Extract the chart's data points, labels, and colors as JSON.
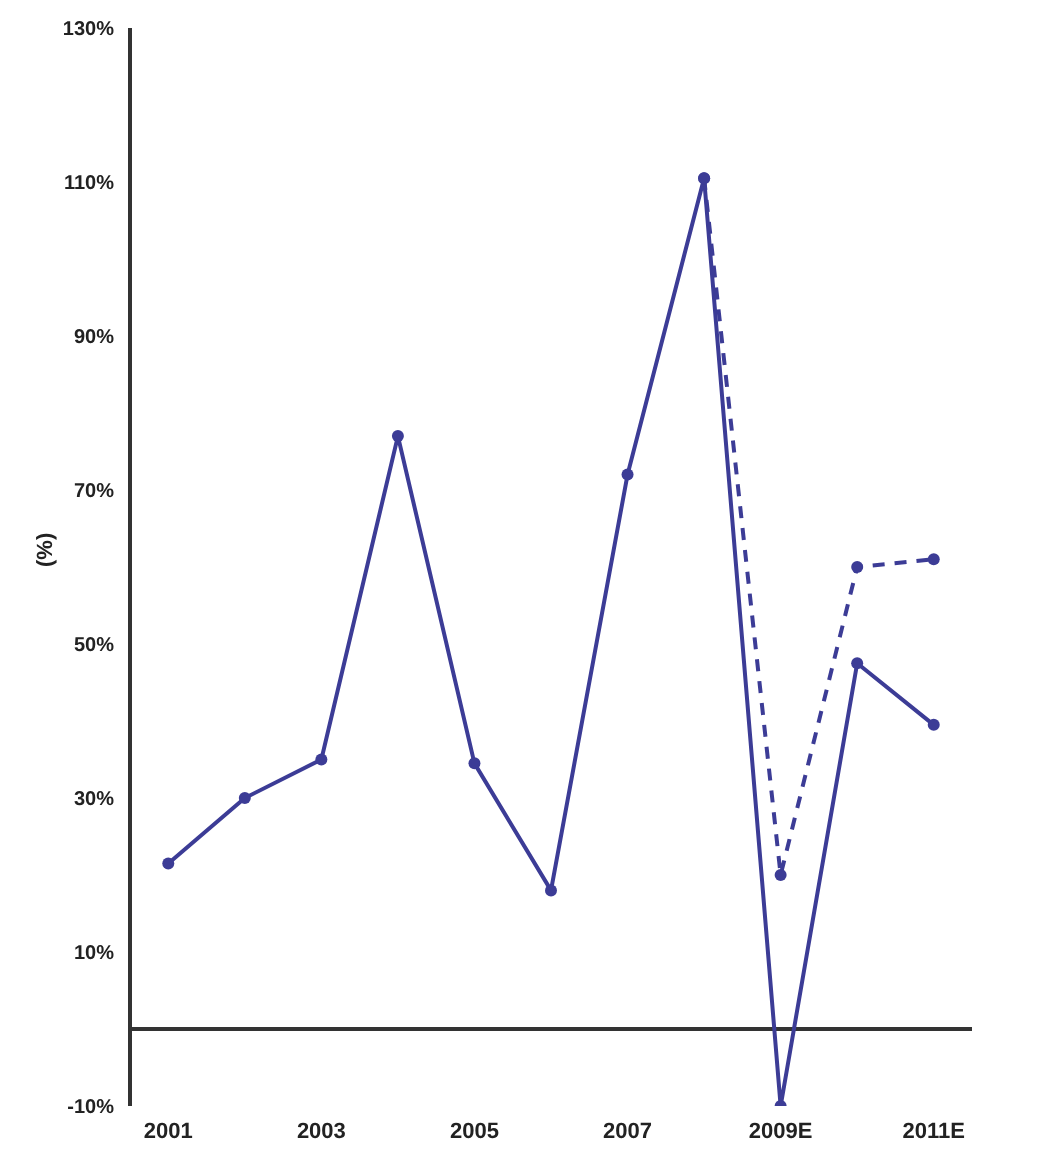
{
  "chart_data": {
    "type": "line",
    "ylabel": "(%)",
    "categories": [
      "2001",
      null,
      "2003",
      null,
      "2005",
      null,
      "2007",
      null,
      "2009E",
      null,
      "2011E"
    ],
    "series": [
      {
        "color": "#3c3c96",
        "line_style": "solid",
        "values": [
          21.5,
          30,
          35,
          77,
          34.5,
          18,
          72,
          110.5,
          -10,
          47.5,
          39.5
        ]
      },
      {
        "color": "#3c3c96",
        "line_style": "dashed",
        "values": [
          null,
          null,
          null,
          null,
          null,
          null,
          null,
          110.5,
          20,
          60,
          61
        ]
      }
    ],
    "ylim": [
      -10,
      130
    ],
    "yticks": [
      {
        "value": -10,
        "label": "-10%"
      },
      {
        "value": 10,
        "label": "10%"
      },
      {
        "value": 30,
        "label": "30%"
      },
      {
        "value": 50,
        "label": "50%"
      },
      {
        "value": 70,
        "label": "70%"
      },
      {
        "value": 90,
        "label": "90%"
      },
      {
        "value": 110,
        "label": "110%"
      },
      {
        "value": 130,
        "label": "130%"
      }
    ],
    "ref_lines": [
      {
        "axis": "y",
        "value": 0,
        "color": "#333333"
      }
    ],
    "marker": "circle",
    "grid": false,
    "legend": false
  }
}
